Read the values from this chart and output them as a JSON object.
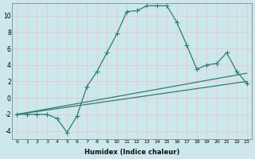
{
  "xlabel": "Humidex (Indice chaleur)",
  "bg_color": "#cce8ec",
  "grid_color": "#e8c8c8",
  "line_color": "#2e7d6e",
  "xlim": [
    -0.5,
    23.5
  ],
  "ylim": [
    -5,
    11.5
  ],
  "ytick_values": [
    -4,
    -2,
    0,
    2,
    4,
    6,
    8,
    10
  ],
  "series1_x": [
    0,
    1,
    2,
    3,
    4,
    5,
    6,
    7,
    8,
    9,
    10,
    11,
    12,
    13,
    14,
    15,
    16,
    17,
    18,
    19,
    20,
    21,
    22,
    23
  ],
  "series1_y": [
    -2,
    -2,
    -2,
    -2,
    -2.5,
    -4.2,
    -2.2,
    1.4,
    3.2,
    5.5,
    7.8,
    10.5,
    10.6,
    11.2,
    11.2,
    11.2,
    9.2,
    6.4,
    3.5,
    4.0,
    4.2,
    5.5,
    3.2,
    1.8
  ],
  "series2_x": [
    0,
    23
  ],
  "series2_y": [
    -2.0,
    3.0
  ],
  "series3_x": [
    0,
    23
  ],
  "series3_y": [
    -2.0,
    2.0
  ],
  "marker": "+",
  "markersize": 4.0,
  "linewidth": 0.9
}
